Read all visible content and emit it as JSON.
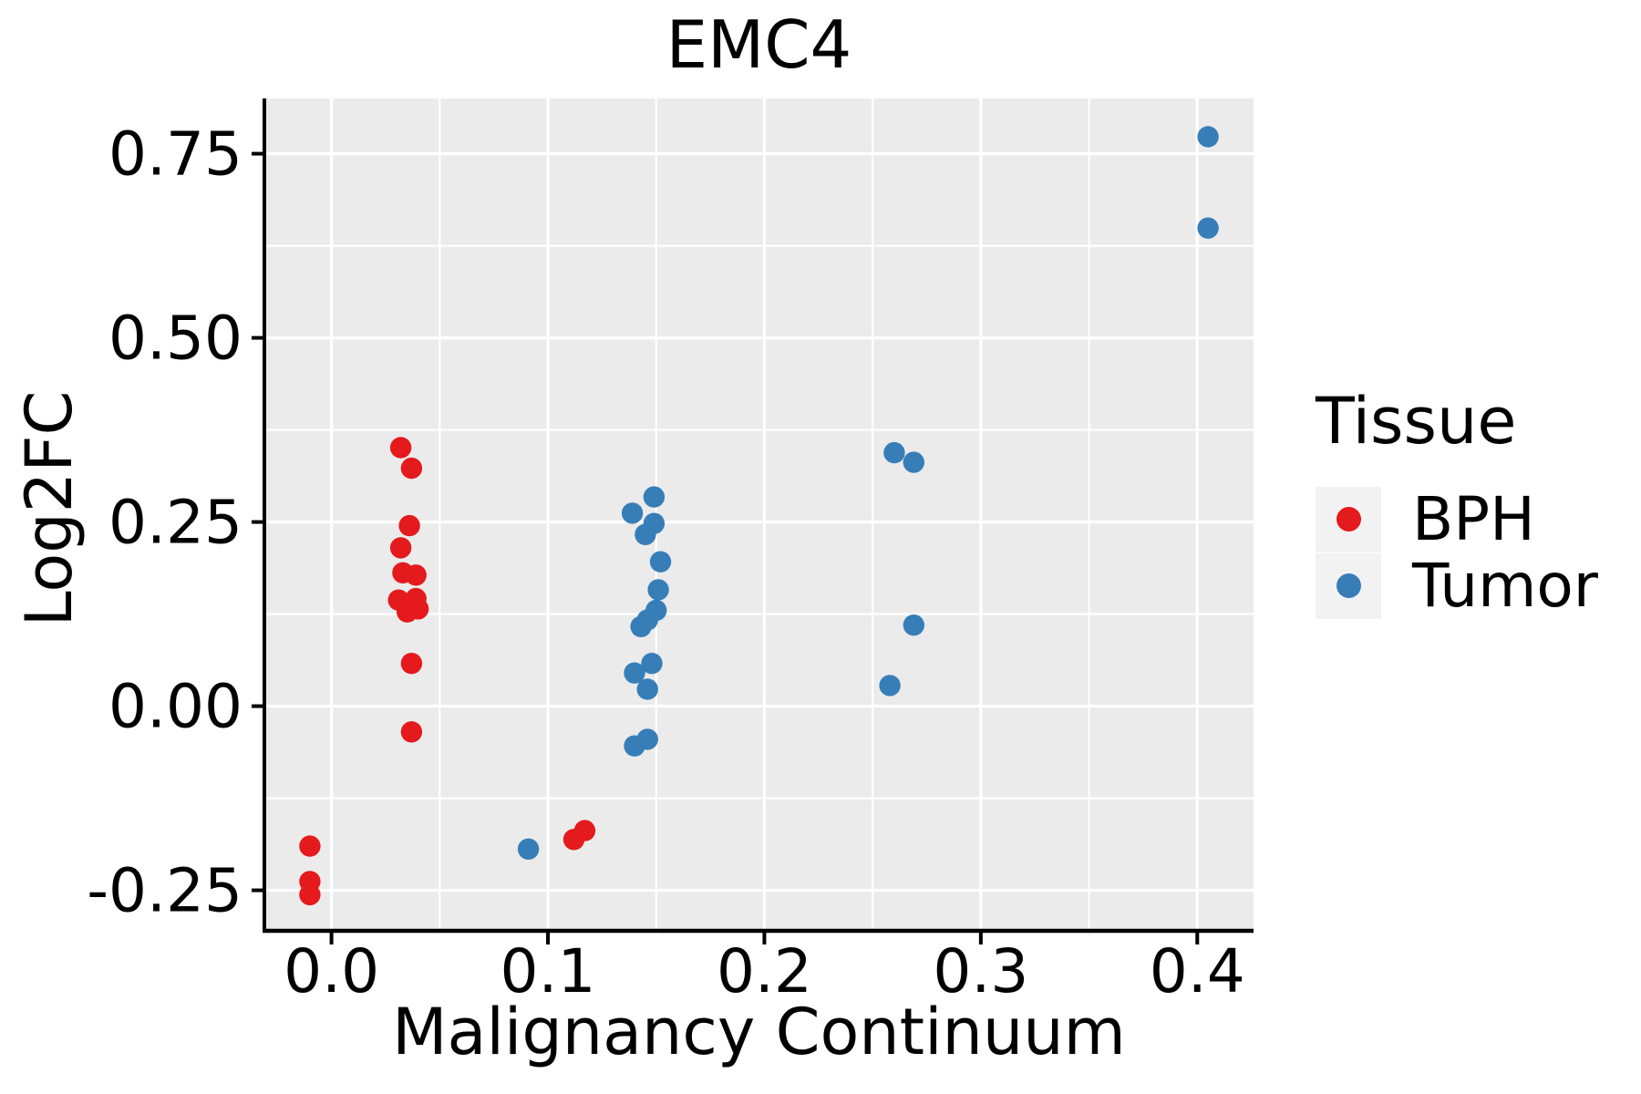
{
  "chart_data": {
    "type": "scatter",
    "title": "EMC4",
    "xlabel": "Malignancy Continuum",
    "ylabel": "Log2FC",
    "x_tick_labels": [
      "0.0",
      "0.1",
      "0.2",
      "0.3",
      "0.4"
    ],
    "x_tick_values": [
      0.0,
      0.1,
      0.2,
      0.3,
      0.4
    ],
    "y_tick_labels": [
      "-0.25",
      "0.00",
      "0.25",
      "0.50",
      "0.75"
    ],
    "y_tick_values": [
      -0.25,
      0.0,
      0.25,
      0.5,
      0.75
    ],
    "x_minor_gridlines": [
      0.05,
      0.15,
      0.25,
      0.35
    ],
    "y_minor_gridlines": [
      -0.125,
      0.125,
      0.375,
      0.625
    ],
    "xlim": [
      -0.031,
      0.426
    ],
    "ylim": [
      -0.305,
      0.825
    ],
    "grid": true,
    "panel_bg_color": "#EBEBEB",
    "grid_color": "#FFFFFF",
    "axis_color": "#000000",
    "legend": {
      "title": "Tissue",
      "position": "right",
      "entries": [
        {
          "label": "BPH",
          "color": "#E41A1C"
        },
        {
          "label": "Tumor",
          "color": "#377EB8"
        }
      ]
    },
    "series": [
      {
        "name": "BPH",
        "color": "#E41A1C",
        "points": [
          [
            -0.01,
            -0.19
          ],
          [
            -0.01,
            -0.238
          ],
          [
            -0.01,
            -0.256
          ],
          [
            0.032,
            0.351
          ],
          [
            0.037,
            0.323
          ],
          [
            0.036,
            0.245
          ],
          [
            0.032,
            0.215
          ],
          [
            0.033,
            0.181
          ],
          [
            0.039,
            0.178
          ],
          [
            0.031,
            0.144
          ],
          [
            0.039,
            0.146
          ],
          [
            0.04,
            0.132
          ],
          [
            0.035,
            0.128
          ],
          [
            0.037,
            0.058
          ],
          [
            0.037,
            -0.035
          ],
          [
            0.112,
            -0.181
          ],
          [
            0.117,
            -0.169
          ]
        ]
      },
      {
        "name": "Tumor",
        "color": "#377EB8",
        "points": [
          [
            0.091,
            -0.194
          ],
          [
            0.149,
            0.284
          ],
          [
            0.139,
            0.262
          ],
          [
            0.149,
            0.248
          ],
          [
            0.145,
            0.233
          ],
          [
            0.152,
            0.196
          ],
          [
            0.151,
            0.158
          ],
          [
            0.15,
            0.13
          ],
          [
            0.146,
            0.117
          ],
          [
            0.143,
            0.108
          ],
          [
            0.148,
            0.058
          ],
          [
            0.14,
            0.045
          ],
          [
            0.146,
            0.023
          ],
          [
            0.146,
            -0.045
          ],
          [
            0.14,
            -0.054
          ],
          [
            0.26,
            0.344
          ],
          [
            0.269,
            0.331
          ],
          [
            0.269,
            0.11
          ],
          [
            0.258,
            0.028
          ],
          [
            0.405,
            0.773
          ],
          [
            0.405,
            0.649
          ]
        ]
      }
    ]
  }
}
